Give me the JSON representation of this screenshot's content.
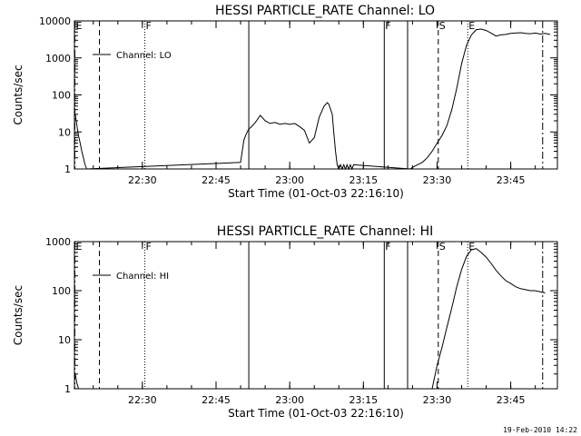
{
  "footer": {
    "timestamp": "19-Feb-2010 14:22"
  },
  "chart_data": [
    {
      "type": "line",
      "title": "HESSI PARTICLE_RATE Channel: LO",
      "xlabel": "Start Time (01-Oct-03 22:16:10)",
      "ylabel": "Counts/sec",
      "yscale": "log",
      "xlim": [
        "22:16:10",
        "23:54:30"
      ],
      "ylim": [
        1,
        10000
      ],
      "xticks": [
        "22:30",
        "22:45",
        "23:00",
        "23:15",
        "23:30",
        "23:45"
      ],
      "yticks": [
        "1",
        "10",
        "100",
        "1000",
        "10000"
      ],
      "legend": {
        "position": "upper-left",
        "entries": [
          "Channel: LO"
        ]
      },
      "series": [
        {
          "name": "Channel: LO",
          "x": [
            "22:16:20",
            "22:16:40",
            "22:17:00",
            "22:17:20",
            "22:17:40",
            "22:18:00",
            "22:18:20",
            "22:18:40",
            "22:50:00",
            "22:50:20",
            "22:50:40",
            "22:51:00",
            "22:51:20",
            "22:51:40",
            "22:52:00",
            "22:53:00",
            "22:54:00",
            "22:55:00",
            "22:56:00",
            "22:57:00",
            "22:58:00",
            "22:59:00",
            "23:00:00",
            "23:01:00",
            "23:02:00",
            "23:03:00",
            "23:04:00",
            "23:05:00",
            "23:06:00",
            "23:07:00",
            "23:07:40",
            "23:08:00",
            "23:08:40",
            "23:09:00",
            "23:09:20",
            "23:09:40",
            "23:10:00",
            "23:10:20",
            "23:10:40",
            "23:11:00",
            "23:11:20",
            "23:11:40",
            "23:12:00",
            "23:12:20",
            "23:12:40",
            "23:13:00",
            "23:24:30",
            "23:25:00",
            "23:26:00",
            "23:27:00",
            "23:28:00",
            "23:29:00",
            "23:30:00",
            "23:31:00",
            "23:32:00",
            "23:33:00",
            "23:34:00",
            "23:35:00",
            "23:36:00",
            "23:37:00",
            "23:38:00",
            "23:39:00",
            "23:40:00",
            "23:41:00",
            "23:42:00",
            "23:43:00",
            "23:44:00",
            "23:45:00",
            "23:46:00",
            "23:47:00",
            "23:48:00",
            "23:49:00",
            "23:50:00",
            "23:51:00",
            "23:52:00",
            "23:53:00"
          ],
          "y": [
            30,
            15,
            8,
            5,
            3,
            2,
            1.3,
            1,
            1.5,
            3,
            6,
            8,
            10,
            12,
            13,
            18,
            28,
            20,
            17,
            18,
            16,
            17,
            16,
            17,
            14,
            11,
            5,
            7,
            25,
            50,
            62,
            55,
            30,
            9,
            3,
            1.3,
            1,
            1.3,
            1,
            1.3,
            1,
            1.3,
            1,
            1.3,
            1,
            1.3,
            1,
            1.1,
            1.3,
            1.5,
            2,
            3,
            5,
            8,
            15,
            40,
            150,
            700,
            2200,
            4200,
            5800,
            6000,
            5500,
            4700,
            3900,
            4200,
            4300,
            4600,
            4700,
            4800,
            4600,
            4500,
            4700,
            4400,
            4600,
            4300
          ]
        }
      ],
      "event_markers": [
        {
          "label": "E",
          "time": "22:16:15",
          "style": "dashdot"
        },
        {
          "label": "",
          "time": "22:21:15",
          "style": "dashed"
        },
        {
          "label": "F",
          "time": "22:30:30",
          "style": "dotted"
        },
        {
          "label": "",
          "time": "22:51:40",
          "style": "solid"
        },
        {
          "label": "F",
          "time": "23:19:15",
          "style": "solid"
        },
        {
          "label": "",
          "time": "23:24:00",
          "style": "solid"
        },
        {
          "label": "S",
          "time": "23:30:15",
          "style": "dashed"
        },
        {
          "label": "E",
          "time": "23:36:15",
          "style": "dotted"
        },
        {
          "label": "",
          "time": "23:51:30",
          "style": "dashdot"
        }
      ]
    },
    {
      "type": "line",
      "title": "HESSI PARTICLE_RATE Channel: HI",
      "xlabel": "Start Time (01-Oct-03 22:16:10)",
      "ylabel": "Counts/sec",
      "yscale": "log",
      "xlim": [
        "22:16:10",
        "23:54:30"
      ],
      "ylim": [
        1,
        1000
      ],
      "xticks": [
        "22:30",
        "22:45",
        "23:00",
        "23:15",
        "23:30",
        "23:45"
      ],
      "yticks": [
        "1",
        "10",
        "100",
        "1000"
      ],
      "legend": {
        "position": "upper-left",
        "entries": [
          "Channel: HI"
        ]
      },
      "series": [
        {
          "name": "Channel: HI",
          "x": [
            "22:16:20",
            "22:16:40",
            "22:17:00",
            "23:29:00",
            "23:30:00",
            "23:31:00",
            "23:32:00",
            "23:33:00",
            "23:34:00",
            "23:35:00",
            "23:36:00",
            "23:37:00",
            "23:38:00",
            "23:39:00",
            "23:40:00",
            "23:41:00",
            "23:42:00",
            "23:43:00",
            "23:44:00",
            "23:45:00",
            "23:46:00",
            "23:47:00",
            "23:48:00",
            "23:49:00",
            "23:50:00",
            "23:51:00",
            "23:52:00"
          ],
          "y": [
            2,
            1.3,
            1,
            1,
            3,
            7,
            18,
            45,
            120,
            270,
            500,
            680,
            720,
            600,
            480,
            360,
            260,
            200,
            160,
            140,
            120,
            110,
            105,
            100,
            100,
            95,
            90
          ]
        }
      ],
      "event_markers": [
        {
          "label": "E",
          "time": "22:16:15",
          "style": "dashdot"
        },
        {
          "label": "",
          "time": "22:21:15",
          "style": "dashed"
        },
        {
          "label": "F",
          "time": "22:30:30",
          "style": "dotted"
        },
        {
          "label": "",
          "time": "22:51:40",
          "style": "solid"
        },
        {
          "label": "F",
          "time": "23:19:15",
          "style": "solid"
        },
        {
          "label": "",
          "time": "23:24:00",
          "style": "solid"
        },
        {
          "label": "S",
          "time": "23:30:15",
          "style": "dashed"
        },
        {
          "label": "E",
          "time": "23:36:15",
          "style": "dotted"
        },
        {
          "label": "",
          "time": "23:51:30",
          "style": "dashdot"
        }
      ]
    }
  ]
}
